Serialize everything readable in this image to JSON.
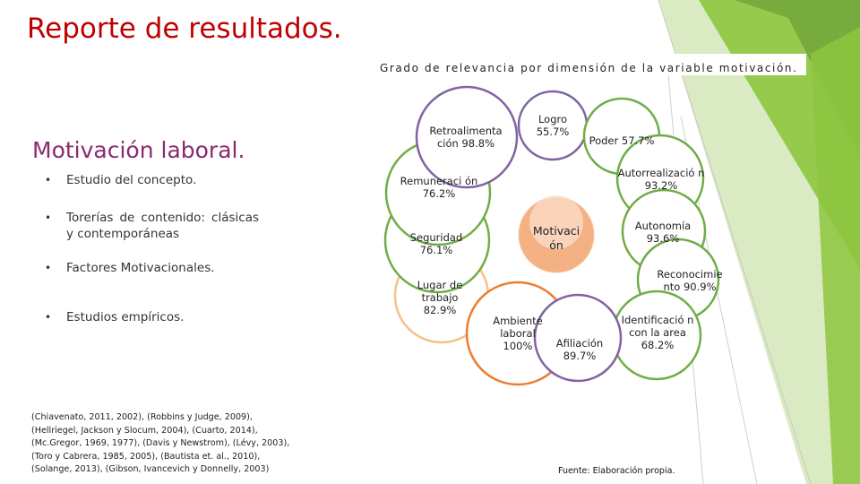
{
  "header": {
    "title": "Reporte de resultados.",
    "subtitle": "Grado de relevancia por dimensión de la variable motivación."
  },
  "left_panel": {
    "heading": "Motivación laboral.",
    "bullets": [
      "Estudio del concepto.",
      "Torerías de contenido: clásicas y contemporáneas",
      "Factores Motivacionales.",
      "Estudios empíricos."
    ]
  },
  "references": [
    "(Chiavenato, 2011, 2002), (Robbins y Judge, 2009),",
    "(Hellriegel, Jackson y Slocum, 2004), (Cuarto, 2014),",
    "(Mc.Gregor, 1969, 1977), (Davis y Newstrom), (Lévy, 2003),",
    "(Toro y Cabrera, 1985, 2005), (Bautista et. al., 2010),",
    "(Solange, 2013), (Gibson, Ivancevich y Donnelly, 2003)"
  ],
  "diagram": {
    "center": {
      "label": "Motivaci ón",
      "color": "#f4b183"
    },
    "nodes": [
      {
        "label": "Logro 55.7%",
        "border": "#8064a2"
      },
      {
        "label": "Poder 57.7%",
        "border": "#70ad47"
      },
      {
        "label": "Autorrealizació n 93.2%",
        "border": "#70ad47"
      },
      {
        "label": "Autonomía 93.6%",
        "border": "#70ad47"
      },
      {
        "label": "Reconocimie nto 90.9%",
        "border": "#70ad47"
      },
      {
        "label": "Identificació n con la area 68.2%",
        "border": "#70ad47"
      },
      {
        "label": "Afiliación 89.7%",
        "border": "#8064a2"
      },
      {
        "label": "Ambiente laboral 100%",
        "border": "#ed7d31"
      },
      {
        "label": "Lugar de trabajo 82.9%",
        "border": "#f9c088"
      },
      {
        "label": "Seguridad 76.1%",
        "border": "#70ad47"
      },
      {
        "label": "Remuneraci ón 76.2%",
        "border": "#70ad47"
      },
      {
        "label": "Retroalimenta ción 98.8%",
        "border": "#8064a2"
      }
    ]
  },
  "source": "Fuente: Elaboración propia.",
  "theme": {
    "accent_green": "#8dc63f",
    "title_red": "#c00000",
    "heading_purple": "#8a2a6e"
  }
}
